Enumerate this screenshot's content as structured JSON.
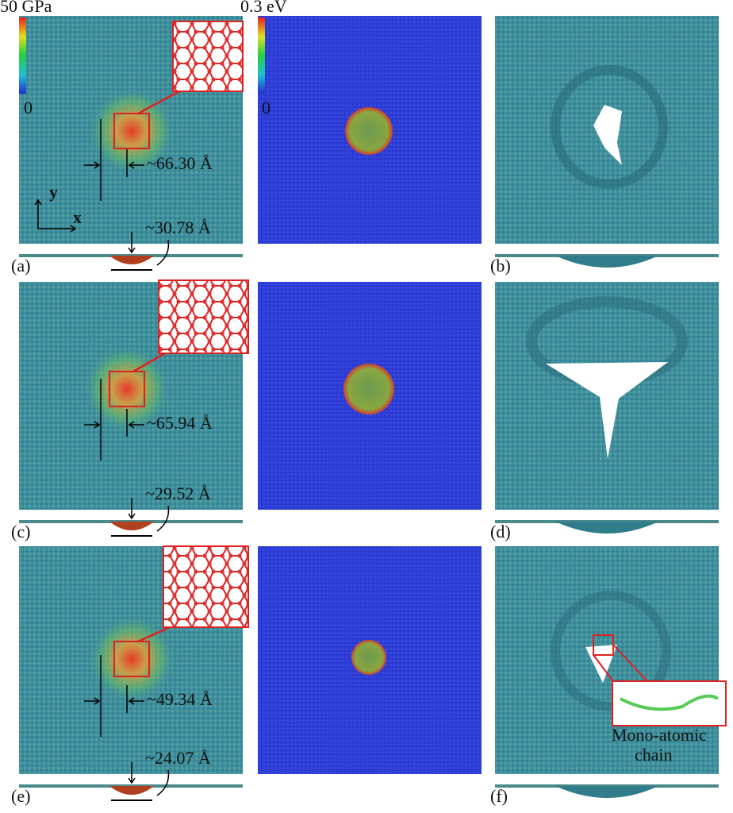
{
  "colorbars": [
    {
      "max_label": "50 GPa",
      "min_label": "0"
    },
    {
      "max_label": "0.3 eV",
      "min_label": "0"
    }
  ],
  "axes": {
    "y": "y",
    "x": "x"
  },
  "rows": [
    {
      "width_label": "~66.30 Å",
      "depth_label": "~30.78 Å",
      "left_label": "(a)",
      "right_label": "(b)"
    },
    {
      "width_label": "~65.94 Å",
      "depth_label": "~29.52 Å",
      "left_label": "(c)",
      "right_label": "(d)"
    },
    {
      "width_label": "~49.34 Å",
      "depth_label": "~24.07 Å",
      "left_label": "(e)",
      "right_label": "(f)"
    }
  ],
  "annotation": {
    "lines": [
      "Mono-atomic",
      "chain"
    ]
  }
}
